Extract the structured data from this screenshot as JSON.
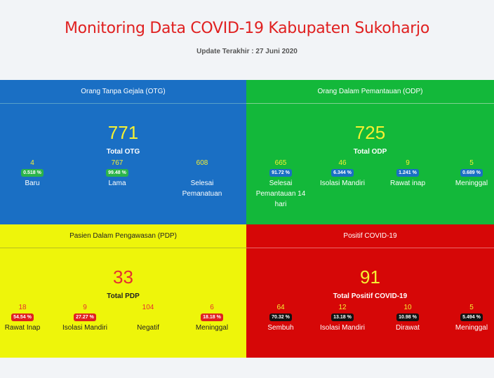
{
  "header": {
    "title": "Monitoring Data COVID-19 Kabupaten Sukoharjo",
    "update": "Update Terakhir : 27 Juni 2020"
  },
  "colors": {
    "otg": "#1a6fc4",
    "odp": "#13b83a",
    "pdp": "#eef50a",
    "positif": "#d60707",
    "title": "#e02020"
  },
  "otg": {
    "heading": "Orang Tanpa Gejala (OTG)",
    "total": "771",
    "total_label": "Total OTG",
    "stats": [
      {
        "num": "4",
        "pct": "0.518 %",
        "label": "Baru"
      },
      {
        "num": "767",
        "pct": "99.48 %",
        "label": "Lama"
      },
      {
        "num": "608",
        "pct": "",
        "label": "Selesai Pemanatuan"
      }
    ]
  },
  "odp": {
    "heading": "Orang Dalam Pemantauan (ODP)",
    "total": "725",
    "total_label": "Total ODP",
    "stats": [
      {
        "num": "665",
        "pct": "91.72 %",
        "label": "Selesai Pemantauan 14 hari"
      },
      {
        "num": "46",
        "pct": "6.344 %",
        "label": "Isolasi Mandiri"
      },
      {
        "num": "9",
        "pct": "1.241 %",
        "label": "Rawat inap"
      },
      {
        "num": "5",
        "pct": "0.689 %",
        "label": "Meninggal"
      }
    ]
  },
  "pdp": {
    "heading": "Pasien Dalam Pengawasan (PDP)",
    "total": "33",
    "total_label": "Total PDP",
    "stats": [
      {
        "num": "18",
        "pct": "54.54 %",
        "label": "Rawat Inap"
      },
      {
        "num": "9",
        "pct": "27.27 %",
        "label": "Isolasi Mandiri"
      },
      {
        "num": "104",
        "pct": "",
        "label": "Negatif"
      },
      {
        "num": "6",
        "pct": "18.18 %",
        "label": "Meninggal"
      }
    ]
  },
  "positif": {
    "heading": "Positif COVID-19",
    "total": "91",
    "total_label": "Total Positif COVID-19",
    "stats": [
      {
        "num": "64",
        "pct": "70.32 %",
        "label": "Sembuh"
      },
      {
        "num": "12",
        "pct": "13.18 %",
        "label": "Isolasi Mandiri"
      },
      {
        "num": "10",
        "pct": "10.98 %",
        "label": "Dirawat"
      },
      {
        "num": "5",
        "pct": "5.494 %",
        "label": "Meninggal"
      }
    ]
  }
}
